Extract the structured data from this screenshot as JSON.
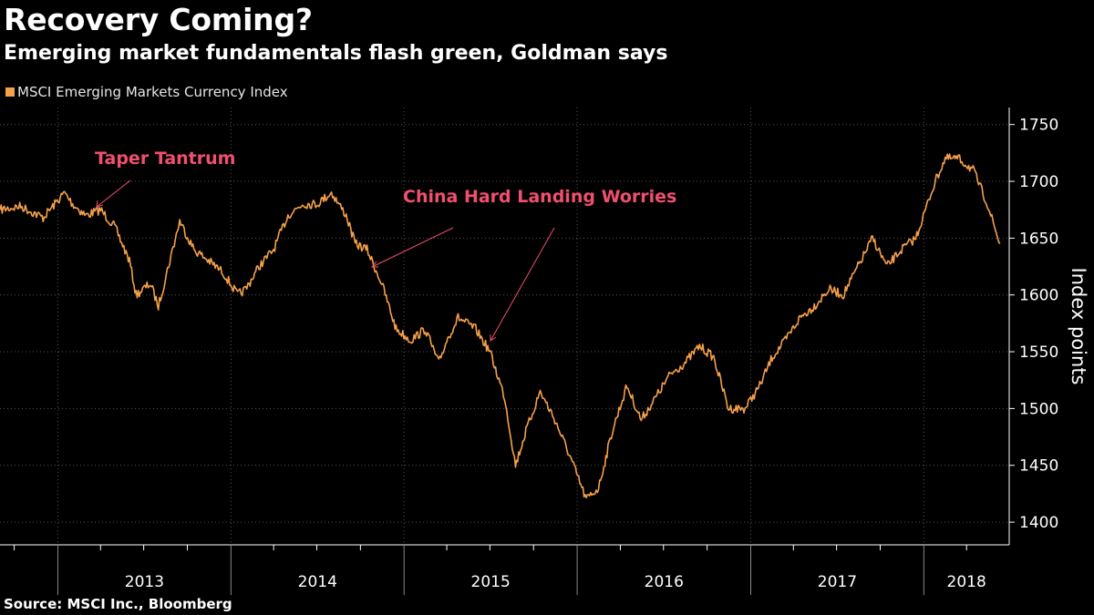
{
  "header": {
    "title": "Recovery Coming?",
    "subtitle": "Emerging market fundamentals flash green, Goldman says"
  },
  "footer": {
    "source": "Source: MSCI Inc., Bloomberg"
  },
  "colors": {
    "series": "#f5a04a",
    "annotation": "#f0506e",
    "background": "#000000",
    "grid": "#555555"
  },
  "chart_data": {
    "type": "line",
    "title": "Recovery Coming?",
    "subtitle": "Emerging market fundamentals flash green, Goldman says",
    "ylabel": "Index points",
    "xlabel": "",
    "ylim": [
      1380,
      1765
    ],
    "xlim": [
      "2012-09-01",
      "2018-06-30"
    ],
    "y_ticks": [
      1400,
      1450,
      1500,
      1550,
      1600,
      1650,
      1700,
      1750
    ],
    "x_tick_labels": [
      "2013",
      "2014",
      "2015",
      "2016",
      "2017",
      "2018"
    ],
    "legend_position": "top-left",
    "grid": true,
    "series": [
      {
        "name": "MSCI Emerging Markets Currency Index",
        "x": [
          "2012-09-01",
          "2012-10-15",
          "2012-12-01",
          "2013-01-15",
          "2013-02-01",
          "2013-03-01",
          "2013-04-01",
          "2013-05-01",
          "2013-06-01",
          "2013-06-15",
          "2013-07-15",
          "2013-08-01",
          "2013-08-25",
          "2013-09-15",
          "2013-10-15",
          "2013-11-15",
          "2013-12-15",
          "2014-01-15",
          "2014-02-01",
          "2014-03-01",
          "2014-04-01",
          "2014-05-01",
          "2014-06-01",
          "2014-07-01",
          "2014-08-01",
          "2014-09-01",
          "2014-09-20",
          "2014-10-15",
          "2014-11-15",
          "2014-12-15",
          "2015-01-15",
          "2015-02-15",
          "2015-03-15",
          "2015-04-01",
          "2015-04-25",
          "2015-06-01",
          "2015-07-01",
          "2015-08-01",
          "2015-08-24",
          "2015-09-15",
          "2015-10-15",
          "2015-11-15",
          "2015-12-15",
          "2016-01-20",
          "2016-02-15",
          "2016-03-15",
          "2016-04-15",
          "2016-05-15",
          "2016-06-15",
          "2016-07-15",
          "2016-08-15",
          "2016-09-15",
          "2016-10-15",
          "2016-11-15",
          "2016-12-20",
          "2017-01-20",
          "2017-02-15",
          "2017-03-15",
          "2017-04-15",
          "2017-05-15",
          "2017-06-15",
          "2017-07-15",
          "2017-08-15",
          "2017-09-15",
          "2017-10-15",
          "2017-11-15",
          "2017-12-15",
          "2018-01-25",
          "2018-02-15",
          "2018-03-15",
          "2018-04-15",
          "2018-05-15",
          "2018-06-10"
        ],
        "values": [
          1675,
          1678,
          1668,
          1690,
          1680,
          1670,
          1675,
          1660,
          1630,
          1600,
          1610,
          1590,
          1630,
          1665,
          1640,
          1630,
          1620,
          1600,
          1605,
          1625,
          1640,
          1670,
          1680,
          1680,
          1690,
          1670,
          1645,
          1640,
          1610,
          1570,
          1560,
          1570,
          1540,
          1560,
          1580,
          1570,
          1550,
          1510,
          1450,
          1480,
          1515,
          1490,
          1460,
          1420,
          1430,
          1480,
          1520,
          1490,
          1510,
          1530,
          1540,
          1555,
          1545,
          1500,
          1500,
          1520,
          1545,
          1560,
          1580,
          1590,
          1605,
          1600,
          1625,
          1650,
          1625,
          1640,
          1650,
          1700,
          1720,
          1720,
          1710,
          1680,
          1645
        ]
      }
    ],
    "annotations": [
      {
        "text": "Taper Tantrum"
      },
      {
        "text": "China Hard Landing Worries"
      }
    ]
  }
}
